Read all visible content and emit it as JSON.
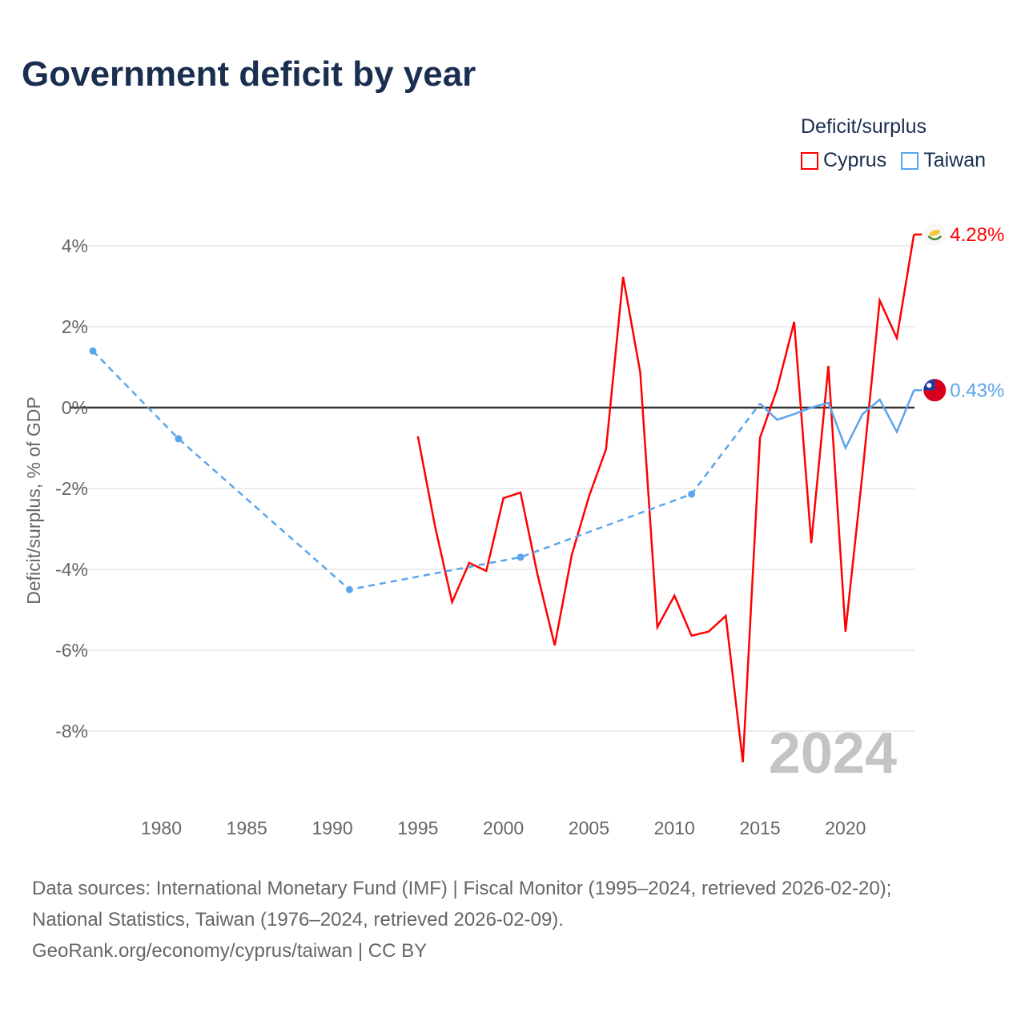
{
  "title": "Government deficit by year",
  "legend": {
    "title": "Deficit/surplus",
    "items": [
      {
        "name": "Cyprus",
        "color": "#ff0000"
      },
      {
        "name": "Taiwan",
        "color": "#5aa5eb"
      }
    ]
  },
  "chart_data": {
    "type": "line",
    "title": "Government deficit by year",
    "xlabel": "",
    "ylabel": "Deficit/surplus, % of GDP",
    "xlim": [
      1976,
      2024
    ],
    "ylim": [
      -9.5,
      4.8
    ],
    "x_ticks": [
      1980,
      1985,
      1990,
      1995,
      2000,
      2005,
      2010,
      2015,
      2020
    ],
    "y_ticks": [
      4,
      2,
      0,
      -2,
      -4,
      -6,
      -8
    ],
    "y_tick_labels": [
      "4%",
      "2%",
      "0%",
      "-2%",
      "-4%",
      "-6%",
      "-8%"
    ],
    "grid": true,
    "legend_position": "top-right",
    "year_watermark": "2024",
    "series": [
      {
        "name": "Cyprus",
        "color": "#ff0000",
        "end_label": "4.28%",
        "x": [
          1995,
          1996,
          1997,
          1998,
          1999,
          2000,
          2001,
          2002,
          2003,
          2004,
          2005,
          2006,
          2007,
          2008,
          2009,
          2010,
          2011,
          2012,
          2013,
          2014,
          2015,
          2016,
          2017,
          2018,
          2019,
          2020,
          2021,
          2022,
          2023,
          2024
        ],
        "y": [
          -0.71,
          -2.93,
          -4.81,
          -3.84,
          -4.04,
          -2.24,
          -2.1,
          -4.14,
          -5.88,
          -3.64,
          -2.2,
          -1.03,
          3.23,
          0.87,
          -5.43,
          -4.65,
          -5.64,
          -5.54,
          -5.15,
          -8.77,
          -0.75,
          0.46,
          2.12,
          -3.35,
          1.03,
          -5.54,
          -1.6,
          2.65,
          1.72,
          4.28
        ]
      },
      {
        "name": "Taiwan",
        "color": "#5aa5eb",
        "end_label": "0.43%",
        "x": [
          1976,
          1981,
          1991,
          2001,
          2011,
          2015,
          2016,
          2017,
          2018,
          2019,
          2020,
          2021,
          2022,
          2023,
          2024
        ],
        "y": [
          1.4,
          -0.77,
          -4.5,
          -3.7,
          -2.14,
          0.1,
          -0.3,
          -0.16,
          0.0,
          0.12,
          -1.0,
          -0.16,
          0.2,
          -0.6,
          0.43
        ],
        "sparse_until": 2015
      }
    ]
  },
  "footer": {
    "line1": "Data sources: International Monetary Fund (IMF) | Fiscal Monitor (1995–2024, retrieved 2026-02-20);",
    "line2": "National Statistics, Taiwan (1976–2024, retrieved 2026-02-09).",
    "line3": "GeoRank.org/economy/cyprus/taiwan | CC BY"
  }
}
